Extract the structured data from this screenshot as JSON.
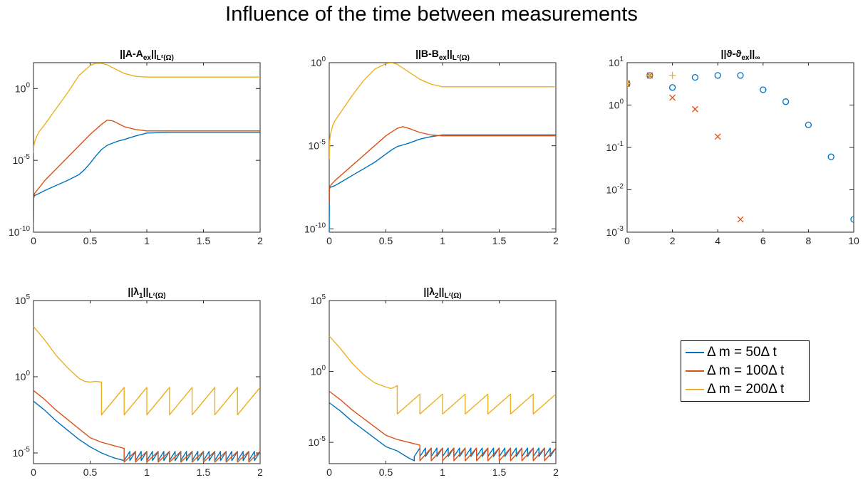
{
  "figure": {
    "title": "Influence of the time between measurements"
  },
  "legend": {
    "entries": [
      {
        "label": "Δ m = 50Δ t",
        "color": "#0072BD"
      },
      {
        "label": "Δ m = 100Δ t",
        "color": "#D95319"
      },
      {
        "label": "Δ m = 200Δ t",
        "color": "#EDB120"
      }
    ]
  },
  "chart_data": [
    {
      "id": "A",
      "type": "line",
      "title_text": "||A-A",
      "title_sub": "ex",
      "title_tail": "||",
      "title_norm": "L²(Ω)",
      "yscale": "log",
      "ylim_exp": [
        -10,
        1.8
      ],
      "xlim": [
        0,
        2
      ],
      "xticks": [
        "0",
        "0.5",
        "1",
        "1.5",
        "2"
      ],
      "yticks": [
        {
          "base": "10",
          "exp": "0",
          "e": 0
        },
        {
          "base": "10",
          "exp": "-5",
          "e": -5
        },
        {
          "base": "10",
          "exp": "-10",
          "e": -10
        }
      ],
      "grid": false,
      "series": [
        {
          "color": "#0072BD",
          "x": [
            0,
            0.002,
            0.01,
            0.05,
            0.1,
            0.2,
            0.3,
            0.4,
            0.45,
            0.5,
            0.55,
            0.6,
            0.65,
            0.7,
            0.75,
            0.8,
            0.9,
            1.0,
            1.2,
            1.5,
            2.0
          ],
          "y": [
            -9.3,
            -7.6,
            -7.45,
            -7.3,
            -7.1,
            -6.75,
            -6.4,
            -6.0,
            -5.65,
            -5.2,
            -4.7,
            -4.25,
            -3.95,
            -3.8,
            -3.65,
            -3.55,
            -3.3,
            -3.1,
            -3.05,
            -3.05,
            -3.05
          ]
        },
        {
          "color": "#D95319",
          "x": [
            0,
            0.002,
            0.01,
            0.05,
            0.1,
            0.2,
            0.3,
            0.4,
            0.5,
            0.6,
            0.65,
            0.7,
            0.75,
            0.8,
            0.9,
            1.0,
            1.2,
            1.5,
            2.0
          ],
          "y": [
            -9.6,
            -7.6,
            -7.3,
            -6.9,
            -6.4,
            -5.6,
            -4.8,
            -4.0,
            -3.2,
            -2.5,
            -2.2,
            -2.25,
            -2.45,
            -2.65,
            -2.85,
            -2.95,
            -2.95,
            -2.95,
            -2.95
          ]
        },
        {
          "color": "#EDB120",
          "x": [
            0,
            0.003,
            0.01,
            0.03,
            0.05,
            0.1,
            0.2,
            0.3,
            0.4,
            0.5,
            0.55,
            0.6,
            0.65,
            0.7,
            0.8,
            0.9,
            1.0,
            1.2,
            1.5,
            2.0
          ],
          "y": [
            -4.5,
            -4.0,
            -3.7,
            -3.3,
            -3.0,
            -2.5,
            -1.4,
            -0.3,
            0.9,
            1.6,
            1.75,
            1.75,
            1.65,
            1.45,
            1.05,
            0.85,
            0.8,
            0.8,
            0.8,
            0.8
          ]
        }
      ]
    },
    {
      "id": "B",
      "type": "line",
      "title_text": "||B-B",
      "title_sub": "ex",
      "title_tail": "||",
      "title_norm": "L²(Ω)",
      "yscale": "log",
      "ylim_exp": [
        -10.2,
        0
      ],
      "xlim": [
        0,
        2
      ],
      "xticks": [
        "0",
        "0.5",
        "1",
        "1.5",
        "2"
      ],
      "yticks": [
        {
          "base": "10",
          "exp": "0",
          "e": 0
        },
        {
          "base": "10",
          "exp": "-5",
          "e": -5
        },
        {
          "base": "10",
          "exp": "-10",
          "e": -10
        }
      ],
      "grid": false,
      "series": [
        {
          "color": "#0072BD",
          "x": [
            0,
            0.002,
            0.01,
            0.05,
            0.1,
            0.2,
            0.3,
            0.4,
            0.5,
            0.55,
            0.6,
            0.65,
            0.7,
            0.8,
            0.9,
            1.0,
            1.2,
            1.5,
            2.0
          ],
          "y": [
            -10.2,
            -7.6,
            -7.5,
            -7.4,
            -7.2,
            -6.8,
            -6.4,
            -6.0,
            -5.5,
            -5.25,
            -5.05,
            -4.95,
            -4.85,
            -4.6,
            -4.45,
            -4.35,
            -4.35,
            -4.35,
            -4.35
          ]
        },
        {
          "color": "#D95319",
          "x": [
            0,
            0.002,
            0.01,
            0.05,
            0.1,
            0.2,
            0.3,
            0.4,
            0.5,
            0.6,
            0.65,
            0.7,
            0.8,
            0.9,
            1.0,
            1.2,
            1.5,
            2.0
          ],
          "y": [
            -8.5,
            -7.6,
            -7.4,
            -7.1,
            -6.8,
            -6.2,
            -5.6,
            -5.0,
            -4.4,
            -3.95,
            -3.85,
            -3.95,
            -4.2,
            -4.35,
            -4.4,
            -4.4,
            -4.4,
            -4.4
          ]
        },
        {
          "color": "#EDB120",
          "x": [
            0,
            0.003,
            0.01,
            0.03,
            0.05,
            0.1,
            0.2,
            0.3,
            0.4,
            0.5,
            0.55,
            0.6,
            0.7,
            0.8,
            0.9,
            1.0,
            1.2,
            1.5,
            2.0
          ],
          "y": [
            -5.8,
            -4.8,
            -4.3,
            -3.8,
            -3.5,
            -3.0,
            -2.0,
            -1.1,
            -0.4,
            -0.05,
            0.0,
            -0.1,
            -0.55,
            -1.0,
            -1.3,
            -1.45,
            -1.45,
            -1.45,
            -1.45
          ]
        }
      ]
    },
    {
      "id": "theta",
      "type": "scatter",
      "title_text": "||ϑ-ϑ",
      "title_sub": "ex",
      "title_tail": "||",
      "title_norm": "∞",
      "yscale": "log",
      "ylim_exp": [
        -3,
        1
      ],
      "xlim": [
        0,
        10
      ],
      "xticks": [
        "0",
        "2",
        "4",
        "6",
        "8",
        "10"
      ],
      "yticks": [
        {
          "base": "10",
          "exp": "1",
          "e": 1
        },
        {
          "base": "10",
          "exp": "0",
          "e": 0
        },
        {
          "base": "10",
          "exp": "-1",
          "e": -1
        },
        {
          "base": "10",
          "exp": "-2",
          "e": -2
        },
        {
          "base": "10",
          "exp": "-3",
          "e": -3
        }
      ],
      "grid": false,
      "series": [
        {
          "color": "#0072BD",
          "marker": "o",
          "x": [
            0,
            1,
            2,
            3,
            4,
            5,
            6,
            7,
            8,
            9,
            10
          ],
          "y": [
            3.2,
            5.0,
            2.6,
            4.5,
            5.0,
            5.0,
            2.3,
            1.2,
            0.34,
            0.06,
            0.002
          ]
        },
        {
          "color": "#D95319",
          "marker": "x",
          "x": [
            0,
            1,
            2,
            3,
            4,
            5
          ],
          "y": [
            3.2,
            5.0,
            1.5,
            0.8,
            0.18,
            0.002
          ]
        },
        {
          "color": "#EDB120",
          "marker": "+",
          "x": [
            0,
            1,
            2
          ],
          "y": [
            3.2,
            5.0,
            5.0
          ]
        }
      ]
    },
    {
      "id": "lambda1",
      "type": "line",
      "title_text": "||λ",
      "title_sub": "1",
      "title_tail": "||",
      "title_norm": "L²(Ω)",
      "yscale": "log",
      "ylim_exp": [
        -5.7,
        5
      ],
      "xlim": [
        0,
        2
      ],
      "xticks": [
        "0",
        "0.5",
        "1",
        "1.5",
        "2"
      ],
      "yticks": [
        {
          "base": "10",
          "exp": "5",
          "e": 5
        },
        {
          "base": "10",
          "exp": "0",
          "e": 0
        },
        {
          "base": "10",
          "exp": "-5",
          "e": -5
        }
      ],
      "grid": false,
      "series": [
        {
          "color": "#0072BD",
          "x": [
            0,
            0.1,
            0.2,
            0.3,
            0.4,
            0.5,
            0.6,
            0.7,
            0.8
          ],
          "y": [
            -1.6,
            -2.2,
            -2.9,
            -3.5,
            -4.1,
            -4.6,
            -5.0,
            -5.3,
            -5.5
          ],
          "sawtooth": {
            "start": 0.8,
            "period": 0.05,
            "low": -5.5,
            "high": -4.9,
            "end": 2.0
          }
        },
        {
          "color": "#D95319",
          "x": [
            0,
            0.1,
            0.2,
            0.3,
            0.4,
            0.5,
            0.6,
            0.7,
            0.8
          ],
          "y": [
            -0.9,
            -1.5,
            -2.2,
            -2.8,
            -3.4,
            -4.0,
            -4.3,
            -4.5,
            -4.7
          ],
          "sawtooth": {
            "start": 0.8,
            "period": 0.1,
            "low": -5.6,
            "high": -4.9,
            "end": 2.0
          }
        },
        {
          "color": "#EDB120",
          "x": [
            0,
            0.1,
            0.2,
            0.3,
            0.4,
            0.45,
            0.5,
            0.55,
            0.6
          ],
          "y": [
            3.3,
            2.4,
            1.4,
            0.6,
            -0.1,
            -0.3,
            -0.35,
            -0.3,
            -0.35
          ],
          "sawtooth": {
            "start": 0.6,
            "period": 0.2,
            "low": -2.5,
            "high": -0.7,
            "end": 2.0
          }
        }
      ]
    },
    {
      "id": "lambda2",
      "type": "line",
      "title_text": "||λ",
      "title_sub": "2",
      "title_tail": "||",
      "title_norm": "L²(Ω)",
      "yscale": "log",
      "ylim_exp": [
        -6.5,
        5
      ],
      "xlim": [
        0,
        2
      ],
      "xticks": [
        "0",
        "0.5",
        "1",
        "1.5",
        "2"
      ],
      "yticks": [
        {
          "base": "10",
          "exp": "5",
          "e": 5
        },
        {
          "base": "10",
          "exp": "0",
          "e": 0
        },
        {
          "base": "10",
          "exp": "-5",
          "e": -5
        }
      ],
      "grid": false,
      "series": [
        {
          "color": "#0072BD",
          "x": [
            0,
            0.1,
            0.2,
            0.3,
            0.4,
            0.5,
            0.6,
            0.7,
            0.75
          ],
          "y": [
            -2.2,
            -2.8,
            -3.5,
            -4.1,
            -4.7,
            -5.3,
            -5.6,
            -6.1,
            -6.3
          ],
          "sawtooth": {
            "start": 0.75,
            "period": 0.05,
            "low": -6.0,
            "high": -5.4,
            "end": 2.0
          }
        },
        {
          "color": "#D95319",
          "x": [
            0,
            0.1,
            0.2,
            0.3,
            0.4,
            0.5,
            0.6,
            0.7,
            0.8
          ],
          "y": [
            -1.4,
            -2.0,
            -2.7,
            -3.3,
            -3.9,
            -4.5,
            -4.8,
            -5.0,
            -5.2
          ],
          "sawtooth": {
            "start": 0.8,
            "period": 0.1,
            "low": -6.3,
            "high": -5.4,
            "end": 2.0
          }
        },
        {
          "color": "#EDB120",
          "x": [
            0,
            0.1,
            0.2,
            0.3,
            0.4,
            0.5,
            0.55,
            0.6
          ],
          "y": [
            2.5,
            1.6,
            0.6,
            -0.2,
            -0.8,
            -1.1,
            -1.2,
            -1.0
          ],
          "sawtooth": {
            "start": 0.6,
            "period": 0.2,
            "low": -3.0,
            "high": -1.6,
            "end": 2.0
          }
        }
      ]
    }
  ]
}
